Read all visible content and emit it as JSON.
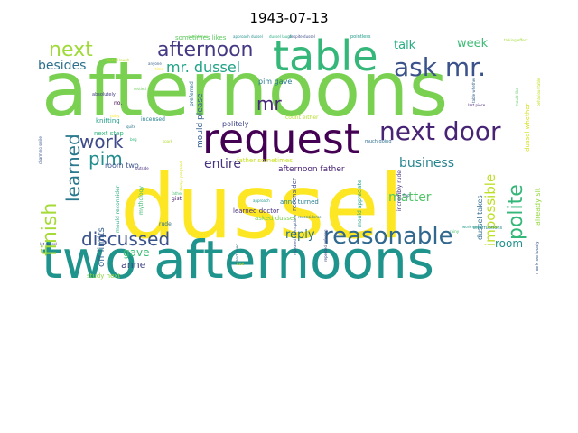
{
  "title": "1943-07-13",
  "words": [
    {
      "text": "afternoons",
      "color": "#7ad151"
    },
    {
      "text": "dussel",
      "color": "#fde725"
    },
    {
      "text": "two afternoons",
      "color": "#1f948c"
    },
    {
      "text": "request",
      "color": "#440154"
    },
    {
      "text": "table",
      "color": "#35b779"
    },
    {
      "text": "ask mr.",
      "color": "#3b528b"
    },
    {
      "text": "next door",
      "color": "#482475"
    },
    {
      "text": "reasonable",
      "color": "#31688e"
    },
    {
      "text": "afternoon",
      "color": "#443983"
    },
    {
      "text": "next",
      "color": "#a0da39"
    },
    {
      "text": "polite",
      "color": "#35b779"
    },
    {
      "text": "work",
      "color": "#3e4a89"
    },
    {
      "text": "learned",
      "color": "#2a788e"
    },
    {
      "text": "finish",
      "color": "#a5db36"
    },
    {
      "text": "discussed",
      "color": "#3b528b"
    },
    {
      "text": "pim",
      "color": "#228d8d"
    },
    {
      "text": "mr",
      "color": "#482878"
    },
    {
      "text": "mr. dussel",
      "color": "#20a386"
    },
    {
      "text": "impossible",
      "color": "#bddf26"
    },
    {
      "text": "besides",
      "color": "#2d708e"
    },
    {
      "text": "talk",
      "color": "#26ad81"
    },
    {
      "text": "week",
      "color": "#3dbc74"
    },
    {
      "text": "business",
      "color": "#25848e"
    },
    {
      "text": "entire",
      "color": "#46327e"
    },
    {
      "text": "matter",
      "color": "#52c569"
    },
    {
      "text": "reply",
      "color": "#2c738e"
    },
    {
      "text": "room",
      "color": "#21918c"
    },
    {
      "text": "gave",
      "color": "#3dbc74"
    },
    {
      "text": "anne",
      "color": "#414487"
    },
    {
      "text": "off-limits",
      "color": "#34618d"
    },
    {
      "text": "afternoon father",
      "color": "#482173"
    },
    {
      "text": "dussel takes",
      "color": "#306a8e"
    },
    {
      "text": "already sit",
      "color": "#95d840"
    },
    {
      "text": "mould please",
      "color": "#355f8d"
    },
    {
      "text": "room two",
      "color": "#3b528b"
    },
    {
      "text": "father sometimes",
      "color": "#c8e020"
    },
    {
      "text": "pim gave",
      "color": "#2a788e"
    },
    {
      "text": "politely",
      "color": "#404588"
    },
    {
      "text": "sometimes likes",
      "color": "#5ec962"
    },
    {
      "text": "knitting",
      "color": "#1e9c89"
    },
    {
      "text": "next step",
      "color": "#31b57b"
    },
    {
      "text": "learned doctor",
      "color": "#472d7b"
    },
    {
      "text": "anne turned",
      "color": "#277f8e"
    },
    {
      "text": "asked dussel",
      "color": "#7ad151"
    },
    {
      "text": "reconsider",
      "color": "#3e4989"
    },
    {
      "text": "study next",
      "color": "#8fd744"
    },
    {
      "text": "insulted anne",
      "color": "#20a486"
    },
    {
      "text": "rude",
      "color": "#2f6c8e"
    },
    {
      "text": "gist",
      "color": "#481b6d"
    },
    {
      "text": "mould reconsider",
      "color": "#28ae80"
    },
    {
      "text": "incensed",
      "color": "#26828e"
    },
    {
      "text": "count either",
      "color": "#b5de2b"
    },
    {
      "text": "much going",
      "color": "#2e6f8e"
    },
    {
      "text": "dussel whether",
      "color": "#d2e21b"
    },
    {
      "text": "mould appreciate",
      "color": "#1fa088"
    },
    {
      "text": "incredibly rude",
      "color": "#46307e"
    },
    {
      "text": "mark seriously",
      "color": "#39558c"
    },
    {
      "text": "mythology",
      "color": "#40bd72"
    },
    {
      "text": "preferred",
      "color": "#2b758e"
    },
    {
      "text": "pointless",
      "color": "#1e9b8a"
    },
    {
      "text": "despite dussel",
      "color": "#3c4f8a"
    },
    {
      "text": "dussel laugh",
      "color": "#25ab82"
    },
    {
      "text": "approach dussel",
      "color": "#218f8d"
    },
    {
      "text": "sometimes",
      "color": "#67cc5c"
    },
    {
      "text": "noisy",
      "color": "#fde725"
    },
    {
      "text": "settled",
      "color": "#6ccd5a"
    },
    {
      "text": "last piece",
      "color": "#482979"
    },
    {
      "text": "talking effect",
      "color": "#a2da37"
    },
    {
      "text": "repeated refusing",
      "color": "#3f4788"
    },
    {
      "text": "sanctioned",
      "color": "#2f6b8e"
    },
    {
      "text": "flap",
      "color": "#38598c"
    },
    {
      "text": "approach",
      "color": "#1f958b"
    },
    {
      "text": "always prepared",
      "color": "#d8e219"
    },
    {
      "text": "father",
      "color": "#4ac16d"
    },
    {
      "text": "interruptions",
      "color": "#25858e"
    },
    {
      "text": "absolutely",
      "color": "#424086"
    },
    {
      "text": "reasonable request",
      "color": "#a8db34"
    },
    {
      "text": "charming smile",
      "color": "#3a538b"
    },
    {
      "text": "outside",
      "color": "#472f7d"
    },
    {
      "text": "spark",
      "color": "#b0dd2f"
    },
    {
      "text": "let dussel",
      "color": "#443a83"
    },
    {
      "text": "lose",
      "color": "#d5e21a"
    },
    {
      "text": "rainy",
      "color": "#43bf71"
    },
    {
      "text": "work space",
      "color": "#1e9c89"
    },
    {
      "text": "anyone",
      "color": "#355e8d"
    },
    {
      "text": "dussel laugh",
      "color": "#b8de29"
    },
    {
      "text": "reconsiderse",
      "color": "#2d708e"
    },
    {
      "text": "no.",
      "color": "#440154"
    },
    {
      "text": "beg",
      "color": "#31b57b"
    },
    {
      "text": "time",
      "color": "#fde725"
    },
    {
      "text": "quite",
      "color": "#2a778e"
    },
    {
      "text": "table whether",
      "color": "#34618d"
    },
    {
      "text": "repeated interruptions",
      "color": "#3b528b"
    },
    {
      "text": "mould like",
      "color": "#5cc863"
    },
    {
      "text": "behaviour table",
      "color": "#c2df23"
    }
  ]
}
